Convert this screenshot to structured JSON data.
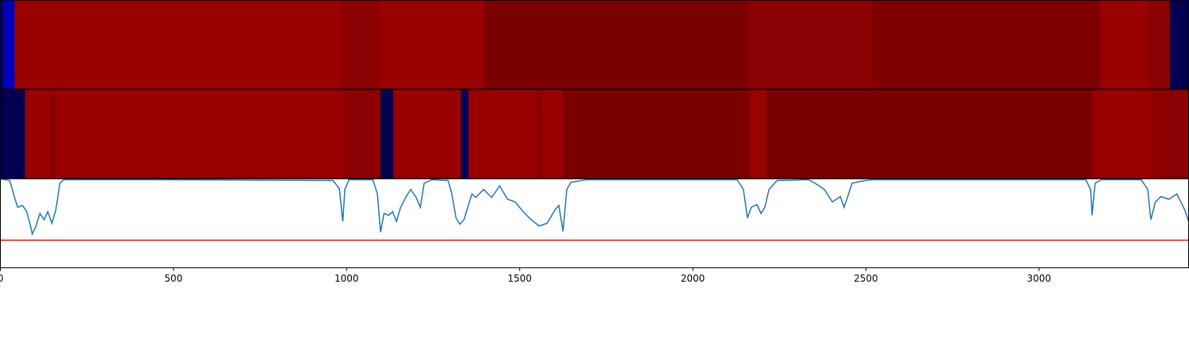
{
  "chart_data": [
    {
      "type": "strip",
      "xlim": [
        0,
        3432
      ],
      "edges": [
        0,
        9,
        41,
        986,
        1094,
        1398,
        2158,
        2517,
        3178,
        3316,
        3378,
        3432
      ],
      "colors": [
        "#000070",
        "#0000b8",
        "#990000",
        "#8b0000",
        "#990000",
        "#7a0000",
        "#8b0000",
        "#7f0000",
        "#990000",
        "#8b0000",
        "#000050"
      ]
    },
    {
      "type": "strip",
      "xlim": [
        0,
        3432
      ],
      "edges": [
        0,
        71,
        144,
        160,
        993,
        1098,
        1135,
        1330,
        1352,
        1547,
        1568,
        1625,
        2162,
        2213,
        3153,
        3330,
        3432
      ],
      "colors": [
        "#000050",
        "#990000",
        "#8b0000",
        "#990000",
        "#8b0000",
        "#000050",
        "#990000",
        "#000050",
        "#990000",
        "#8b0000",
        "#990000",
        "#7a0000",
        "#990000",
        "#7a0000",
        "#990000",
        "#8b0000"
      ]
    },
    {
      "type": "line",
      "xlim": [
        0,
        3432
      ],
      "ylim": [
        0,
        1
      ],
      "color": "#1f77b4",
      "xticks": [
        0,
        500,
        1000,
        1500,
        2000,
        2500,
        3000
      ],
      "hline": {
        "value": 0.31,
        "color": "#ff0000"
      },
      "x": [
        0,
        27,
        41,
        50,
        64,
        76,
        87,
        92,
        103,
        114,
        126,
        137,
        149,
        160,
        172,
        183,
        458,
        961,
        979,
        989,
        995,
        1007,
        1076,
        1089,
        1098,
        1108,
        1121,
        1133,
        1144,
        1156,
        1172,
        1185,
        1201,
        1213,
        1224,
        1247,
        1293,
        1304,
        1316,
        1327,
        1339,
        1350,
        1362,
        1373,
        1396,
        1419,
        1442,
        1465,
        1487,
        1510,
        1533,
        1556,
        1579,
        1602,
        1613,
        1625,
        1636,
        1648,
        1693,
        2128,
        2146,
        2158,
        2169,
        2185,
        2197,
        2208,
        2220,
        2243,
        2334,
        2357,
        2380,
        2403,
        2426,
        2437,
        2460,
        2483,
        2517,
        3043,
        3135,
        3149,
        3153,
        3162,
        3181,
        3295,
        3314,
        3323,
        3336,
        3352,
        3375,
        3398,
        3421,
        3432
      ],
      "values": [
        1.0,
        0.98,
        0.79,
        0.68,
        0.7,
        0.63,
        0.47,
        0.38,
        0.47,
        0.61,
        0.54,
        0.63,
        0.5,
        0.65,
        0.95,
        0.99,
        0.99,
        0.98,
        0.89,
        0.52,
        0.88,
        0.99,
        0.99,
        0.83,
        0.4,
        0.61,
        0.59,
        0.63,
        0.52,
        0.68,
        0.8,
        0.88,
        0.79,
        0.68,
        0.95,
        0.99,
        0.98,
        0.83,
        0.56,
        0.49,
        0.54,
        0.68,
        0.83,
        0.79,
        0.88,
        0.79,
        0.92,
        0.77,
        0.74,
        0.63,
        0.54,
        0.47,
        0.5,
        0.65,
        0.7,
        0.41,
        0.88,
        0.96,
        0.99,
        0.99,
        0.88,
        0.56,
        0.68,
        0.71,
        0.61,
        0.68,
        0.88,
        0.98,
        0.99,
        0.94,
        0.88,
        0.74,
        0.8,
        0.68,
        0.95,
        0.97,
        0.99,
        0.99,
        0.99,
        0.88,
        0.59,
        0.95,
        0.99,
        0.99,
        0.88,
        0.54,
        0.74,
        0.8,
        0.77,
        0.83,
        0.65,
        0.52
      ]
    }
  ]
}
